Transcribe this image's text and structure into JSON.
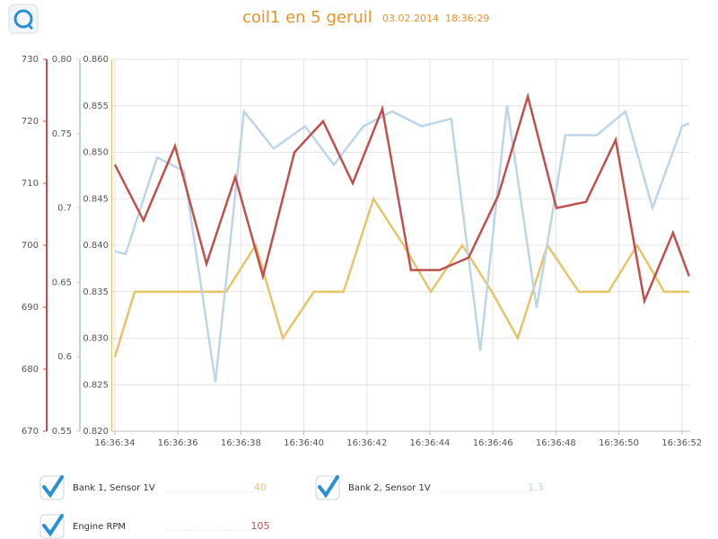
{
  "chart_data": {
    "type": "line",
    "title": "coil1 en 5 geruil",
    "subtitle": "03.02.2014  18:36:29",
    "xlim": [
      33.9,
      52.25
    ],
    "xticks": [
      {
        "value": 34,
        "label": "16:36:34"
      },
      {
        "value": 36,
        "label": "16:36:36"
      },
      {
        "value": 38,
        "label": "16:36:38"
      },
      {
        "value": 40,
        "label": "16:36:40"
      },
      {
        "value": 42,
        "label": "16:36:42"
      },
      {
        "value": 44,
        "label": "16:36:44"
      },
      {
        "value": 46,
        "label": "16:36:46"
      },
      {
        "value": 48,
        "label": "16:36:48"
      },
      {
        "value": 50,
        "label": "16:36:50"
      },
      {
        "value": 52,
        "label": "16:36:52"
      }
    ],
    "ylim": [
      0.82,
      0.86
    ],
    "yticks": [
      {
        "value": 0.82,
        "label": "0.820"
      },
      {
        "value": 0.825,
        "label": "0.825"
      },
      {
        "value": 0.83,
        "label": "0.830"
      },
      {
        "value": 0.835,
        "label": "0.835"
      },
      {
        "value": 0.84,
        "label": "0.840"
      },
      {
        "value": 0.845,
        "label": "0.845"
      },
      {
        "value": 0.85,
        "label": "0.850"
      },
      {
        "value": 0.855,
        "label": "0.855"
      },
      {
        "value": 0.86,
        "label": "0.860"
      }
    ],
    "y2lim": [
      0.55,
      0.8
    ],
    "y2ticks": [
      0.55,
      0.6,
      0.65,
      0.7,
      0.75,
      {
        "value": 0.8,
        "label": "0.80"
      }
    ],
    "y3lim": [
      670,
      730
    ],
    "y3ticks": [
      670,
      680,
      690,
      700,
      710,
      720,
      730
    ],
    "grid": true,
    "series": [
      {
        "name": "Bank 1, Sensor 1V",
        "color": "#e8c36a",
        "axis": "y",
        "current_value": 40,
        "x": [
          34,
          34.63,
          37.53,
          38.47,
          39.33,
          40.32,
          41.26,
          42.21,
          43.17,
          44.03,
          45.03,
          45.97,
          46.79,
          47.73,
          48.73,
          49.67,
          50.58,
          51.44,
          52.23
        ],
        "values": [
          0.828,
          0.835,
          0.835,
          0.84,
          0.83,
          0.835,
          0.835,
          0.845,
          0.84,
          0.835,
          0.84,
          0.835,
          0.83,
          0.84,
          0.835,
          0.835,
          0.84,
          0.835,
          0.835
        ]
      },
      {
        "name": "Bank 2, Sensor 1V",
        "color": "#bcd6e8",
        "axis": "y2",
        "current_value": 1.3,
        "x": [
          34,
          34.34,
          35.34,
          36.19,
          37.19,
          38.1,
          39.04,
          40.04,
          40.95,
          41.89,
          42.8,
          43.74,
          44.68,
          45.6,
          46.45,
          47.39,
          48.3,
          49.3,
          50.21,
          51.07,
          52.01,
          52.23
        ],
        "values": [
          0.671,
          0.669,
          0.734,
          0.725,
          0.583,
          0.765,
          0.74,
          0.755,
          0.729,
          0.755,
          0.765,
          0.755,
          0.76,
          0.604,
          0.769,
          0.633,
          0.749,
          0.749,
          0.765,
          0.7,
          0.755,
          0.757
        ]
      },
      {
        "name": "Engine RPM",
        "color": "#c0504d",
        "axis": "y3",
        "current_value": 105,
        "x": [
          34,
          34.91,
          35.91,
          36.91,
          37.82,
          38.7,
          39.7,
          40.61,
          41.55,
          42.49,
          43.4,
          44.31,
          45.23,
          46.17,
          47.11,
          48.02,
          48.96,
          49.9,
          50.81,
          51.72,
          52.23
        ],
        "values": [
          713,
          704,
          716,
          697,
          711,
          695,
          715,
          720,
          710,
          722,
          696,
          696,
          698,
          708,
          724,
          706,
          707,
          717,
          691,
          702,
          695
        ]
      }
    ]
  }
}
